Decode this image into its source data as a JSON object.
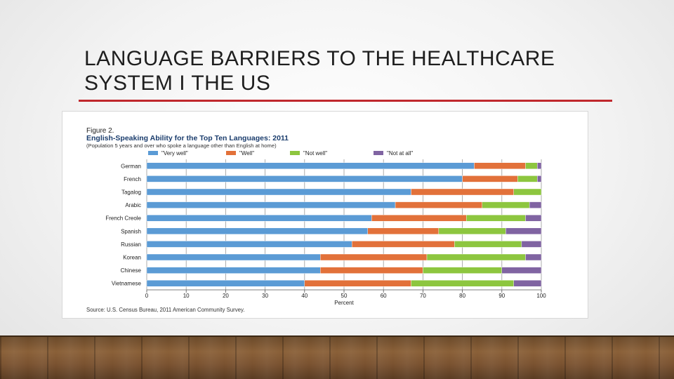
{
  "slide": {
    "title_line1": "LANGUAGE BARRIERS TO THE HEALTHCARE",
    "title_line2": "SYSTEM I THE US"
  },
  "colors": {
    "very_well": "#5b9bd5",
    "well": "#e2713a",
    "not_well": "#8dc63f",
    "not_at_all": "#8064a2",
    "title_rule": "#c0282d"
  },
  "chart_data": {
    "type": "bar",
    "orientation": "horizontal-stacked",
    "figure_label": "Figure 2.",
    "title": "English-Speaking Ability for the Top Ten Languages: 2011",
    "subtitle": "(Population 5 years and over who spoke a language other than English at home)",
    "xlabel": "Percent",
    "ylabel": "",
    "xlim": [
      0,
      100
    ],
    "xticks": [
      0,
      10,
      20,
      30,
      40,
      50,
      60,
      70,
      80,
      90,
      100
    ],
    "legend_position": "top",
    "grid": true,
    "categories": [
      "German",
      "French",
      "Tagalog",
      "Arabic",
      "French Creole",
      "Spanish",
      "Russian",
      "Korean",
      "Chinese",
      "Vietnamese"
    ],
    "series": [
      {
        "name": "\"Very well\"",
        "key": "very_well",
        "values": [
          83,
          80,
          67,
          63,
          57,
          56,
          52,
          44,
          44,
          40
        ]
      },
      {
        "name": "\"Well\"",
        "key": "well",
        "values": [
          13,
          14,
          26,
          22,
          24,
          18,
          26,
          27,
          26,
          27
        ]
      },
      {
        "name": "\"Not well\"",
        "key": "not_well",
        "values": [
          3,
          5,
          7,
          12,
          15,
          17,
          17,
          25,
          20,
          26
        ]
      },
      {
        "name": "\"Not at all\"",
        "key": "not_at_all",
        "values": [
          1,
          1,
          0.5,
          3,
          4,
          9,
          5,
          4,
          10,
          7
        ]
      }
    ],
    "source": "Source: U.S. Census Bureau, 2011 American Community Survey."
  }
}
